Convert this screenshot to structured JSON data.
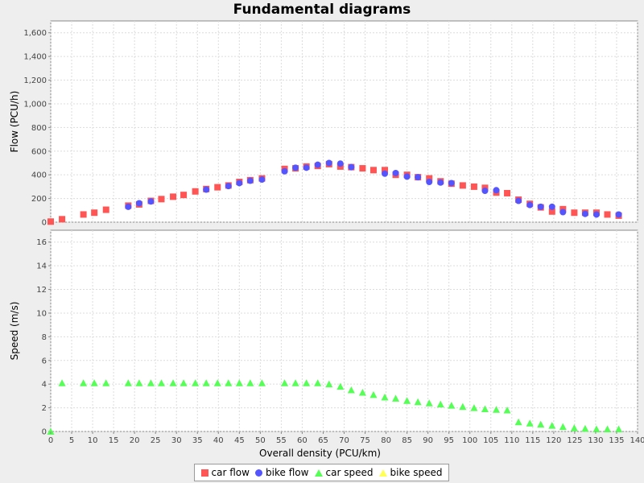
{
  "chart_data": {
    "type": "scatter",
    "title": "Fundamental diagrams",
    "xlabel": "Overall density (PCU/km)",
    "xlim": [
      0,
      140
    ],
    "xticks": [
      "0",
      "5",
      "10",
      "15",
      "20",
      "25",
      "30",
      "35",
      "40",
      "45",
      "50",
      "55",
      "60",
      "65",
      "70",
      "75",
      "80",
      "85",
      "90",
      "95",
      "100",
      "105",
      "110",
      "115",
      "120",
      "125",
      "130",
      "135",
      "140"
    ],
    "grid": true,
    "legend_position": "bottom",
    "panels": [
      {
        "ylabel": "Flow (PCU/h)",
        "ylim": [
          0,
          1700
        ],
        "yticks": [
          "0",
          "200",
          "400",
          "600",
          "800",
          "1,000",
          "1,200",
          "1,400",
          "1,600"
        ],
        "series": [
          {
            "name": "car flow",
            "marker": "square",
            "color": "#ff5555",
            "x": [
              0,
              2.7,
              7.8,
              10.4,
              13.2,
              18.5,
              21.1,
              23.9,
              26.4,
              29.2,
              31.7,
              34.5,
              37.1,
              39.8,
              42.4,
              45.0,
              47.6,
              50.4,
              55.8,
              58.4,
              61.0,
              63.7,
              66.4,
              69.1,
              71.7,
              74.4,
              77.0,
              79.7,
              82.3,
              85.0,
              87.6,
              90.3,
              93.0,
              95.6,
              98.3,
              101.0,
              103.6,
              106.3,
              108.9,
              111.6,
              114.3,
              116.9,
              119.6,
              122.2,
              124.9,
              127.5,
              130.2,
              132.8,
              135.5
            ],
            "y": [
              5,
              25,
              65,
              80,
              105,
              140,
              150,
              180,
              195,
              215,
              230,
              260,
              280,
              295,
              310,
              340,
              355,
              370,
              450,
              455,
              470,
              475,
              490,
              470,
              465,
              455,
              440,
              440,
              400,
              400,
              380,
              370,
              345,
              325,
              310,
              300,
              290,
              250,
              245,
              190,
              155,
              125,
              90,
              110,
              80,
              80,
              80,
              65,
              55
            ]
          },
          {
            "name": "bike flow",
            "marker": "circle",
            "color": "#5555ff",
            "x": [
              18.5,
              21.1,
              23.9,
              37.1,
              42.4,
              45.0,
              47.6,
              50.4,
              55.8,
              58.4,
              61.0,
              63.7,
              66.4,
              69.1,
              71.7,
              79.7,
              82.3,
              85.0,
              87.6,
              90.3,
              93.0,
              95.6,
              103.6,
              106.3,
              111.6,
              114.3,
              116.9,
              119.6,
              122.2,
              127.5,
              130.2,
              135.5
            ],
            "y": [
              130,
              160,
              175,
              275,
              305,
              330,
              350,
              360,
              430,
              460,
              460,
              485,
              500,
              495,
              465,
              410,
              415,
              385,
              380,
              340,
              335,
              330,
              265,
              270,
              180,
              145,
              130,
              130,
              85,
              70,
              65,
              65
            ]
          }
        ]
      },
      {
        "ylabel": "Speed (m/s)",
        "ylim": [
          0,
          17
        ],
        "yticks": [
          "0",
          "2",
          "4",
          "6",
          "8",
          "10",
          "12",
          "14",
          "16"
        ],
        "series": [
          {
            "name": "car speed",
            "marker": "triangle",
            "color": "#55ff55",
            "x": [
              0,
              2.7,
              7.8,
              10.4,
              13.2,
              18.5,
              21.1,
              23.9,
              26.4,
              29.2,
              31.7,
              34.5,
              37.1,
              39.8,
              42.4,
              45.0,
              47.6,
              50.4,
              55.8,
              58.4,
              61.0,
              63.7,
              66.4,
              69.1,
              71.7,
              74.4,
              77.0,
              79.7,
              82.3,
              85.0,
              87.6,
              90.3,
              93.0,
              95.6,
              98.3,
              101.0,
              103.6,
              106.3,
              108.9,
              111.6,
              114.3,
              116.9,
              119.6,
              122.2,
              124.9,
              127.5,
              130.2,
              132.8,
              135.5
            ],
            "y": [
              0,
              4.1,
              4.1,
              4.1,
              4.1,
              4.1,
              4.1,
              4.1,
              4.1,
              4.1,
              4.1,
              4.1,
              4.1,
              4.1,
              4.1,
              4.1,
              4.1,
              4.1,
              4.1,
              4.1,
              4.1,
              4.1,
              4.0,
              3.8,
              3.5,
              3.3,
              3.1,
              2.9,
              2.8,
              2.6,
              2.5,
              2.4,
              2.3,
              2.2,
              2.1,
              2.0,
              1.9,
              1.85,
              1.8,
              0.8,
              0.7,
              0.6,
              0.5,
              0.4,
              0.3,
              0.25,
              0.2,
              0.2,
              0.2
            ]
          },
          {
            "name": "bike speed",
            "marker": "triangle",
            "color": "#ffff55",
            "x": [],
            "y": []
          }
        ]
      }
    ]
  }
}
